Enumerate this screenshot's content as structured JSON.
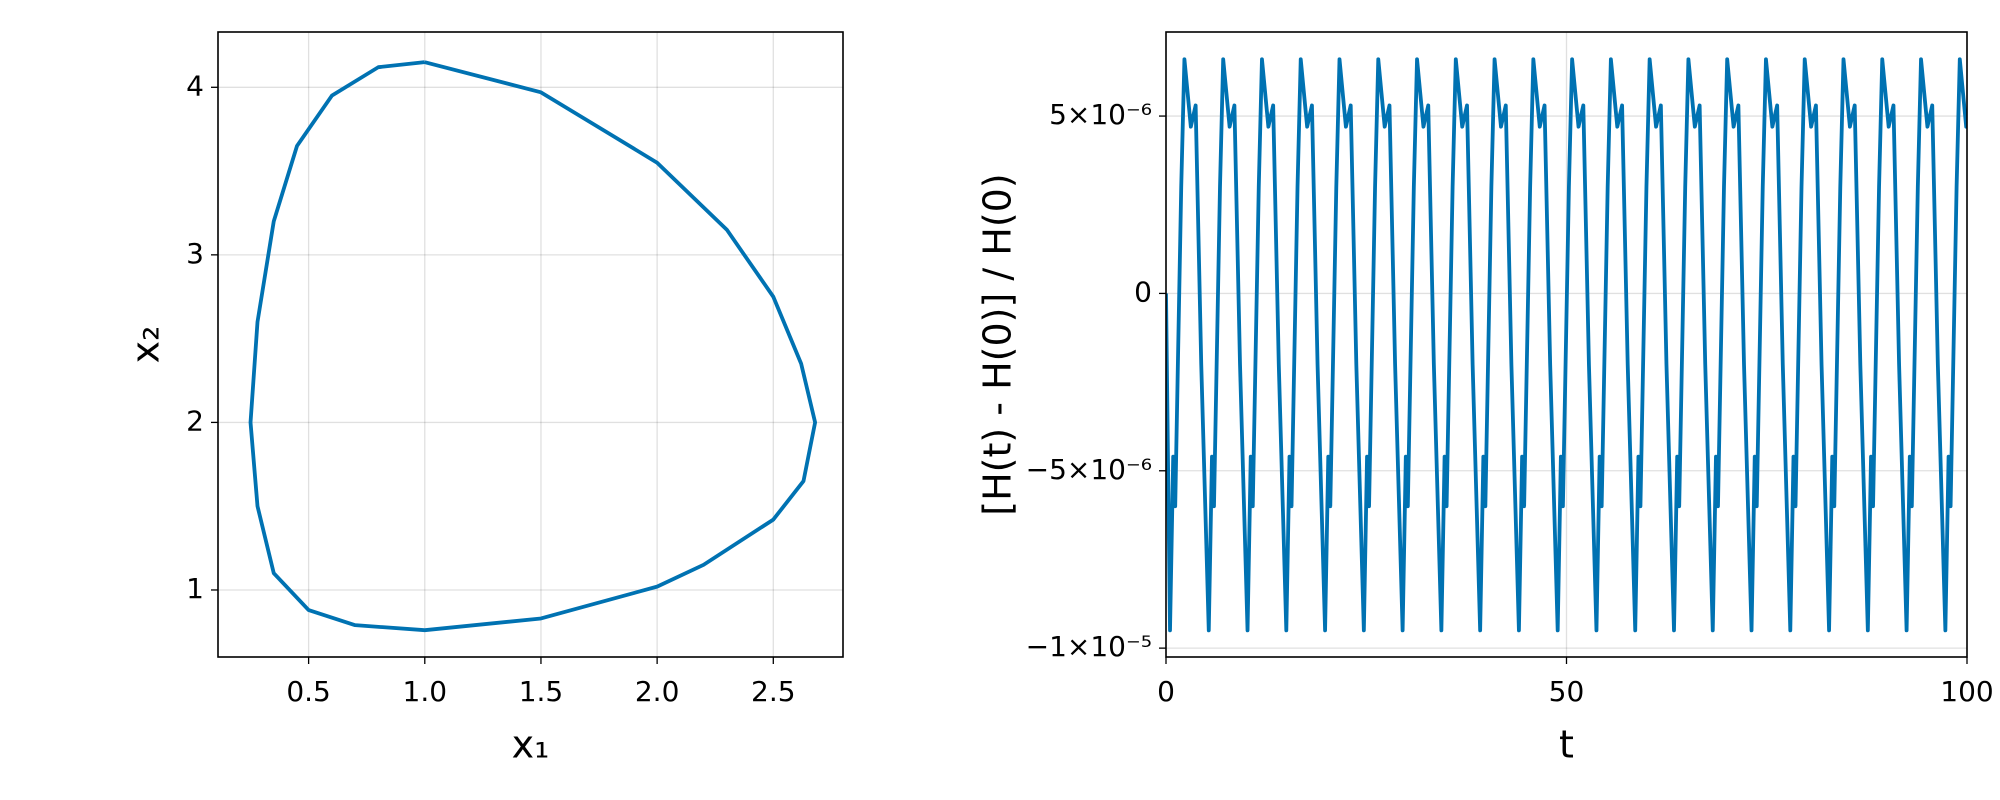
{
  "chart_data": [
    {
      "type": "line",
      "xlabel": "x₁",
      "ylabel": "x₂",
      "color": "#0072b2",
      "grid": true,
      "xlim": [
        0.11,
        2.8
      ],
      "ylim": [
        0.6,
        4.33
      ],
      "xticks": [
        0.5,
        {
          "value": 1.0,
          "label": "1.0"
        },
        1.5,
        {
          "value": 2.0,
          "label": "2.0"
        },
        2.5
      ],
      "yticks": [
        1,
        2,
        3,
        4
      ],
      "x": [
        1.0,
        1.5,
        2.0,
        2.3,
        2.5,
        2.62,
        2.68,
        2.63,
        2.5,
        2.2,
        2.0,
        1.5,
        1.0,
        0.7,
        0.5,
        0.35,
        0.28,
        0.25,
        0.28,
        0.35,
        0.45,
        0.6,
        0.8,
        1.0
      ],
      "values": [
        4.15,
        3.97,
        3.55,
        3.15,
        2.75,
        2.35,
        2.0,
        1.65,
        1.42,
        1.15,
        1.02,
        0.83,
        0.76,
        0.79,
        0.88,
        1.1,
        1.5,
        2.0,
        2.6,
        3.2,
        3.65,
        3.95,
        4.12,
        4.15
      ]
    },
    {
      "type": "line",
      "xlabel": "t",
      "ylabel": "[H(t) - H(0)] / H(0)",
      "color": "#0072b2",
      "grid": true,
      "xlim": [
        0,
        100
      ],
      "ylim": [
        -1.025e-05,
        7.37e-06
      ],
      "xticks": [
        0,
        50,
        100
      ],
      "yticks": [
        {
          "value": 5e-06,
          "label": "5×10⁻⁶"
        },
        0,
        {
          "value": -5e-06,
          "label": "−5×10⁻⁶"
        },
        {
          "value": -1e-05,
          "label": "−1×10⁻⁵"
        }
      ],
      "x": [
        0,
        0.5,
        0.9,
        1.15,
        1.9,
        2.3,
        3.1,
        3.7,
        4.4,
        5.34,
        5.74,
        5.99,
        6.74,
        7.14,
        7.94,
        8.54,
        9.24,
        10.18,
        10.58,
        10.83,
        11.58,
        11.98,
        12.78,
        13.38,
        14.08,
        15.02,
        15.42,
        15.67,
        16.42,
        16.82,
        17.62,
        18.22,
        18.92,
        19.86,
        20.26,
        20.51,
        21.26,
        21.66,
        22.46,
        23.06,
        23.76,
        24.7,
        25.1,
        25.35,
        26.1,
        26.5,
        27.3,
        27.9,
        28.6,
        29.54,
        29.94,
        30.19,
        30.94,
        31.34,
        32.14,
        32.74,
        33.44,
        34.38,
        34.78,
        35.03,
        35.78,
        36.18,
        36.98,
        37.58,
        38.28,
        39.22,
        39.62,
        39.87,
        40.62,
        41.02,
        41.82,
        42.42,
        43.12,
        44.06,
        44.46,
        44.71,
        45.46,
        45.86,
        46.66,
        47.26,
        47.96,
        48.9,
        49.3,
        49.55,
        50.3,
        50.7,
        51.5,
        52.1,
        52.8,
        53.74,
        54.14,
        54.39,
        55.14,
        55.54,
        56.34,
        56.94,
        57.64,
        58.58,
        58.98,
        59.23,
        59.98,
        60.38,
        61.18,
        61.78,
        62.48,
        63.42,
        63.82,
        64.07,
        64.82,
        65.22,
        66.02,
        66.62,
        67.32,
        68.26,
        68.66,
        68.91,
        69.66,
        70.06,
        70.86,
        71.46,
        72.16,
        73.1,
        73.5,
        73.75,
        74.5,
        74.9,
        75.7,
        76.3,
        77,
        77.94,
        78.34,
        78.59,
        79.34,
        79.74,
        80.54,
        81.14,
        81.84,
        82.78,
        83.18,
        83.43,
        84.18,
        84.58,
        85.38,
        85.98,
        86.68,
        87.62,
        88.02,
        88.27,
        89.02,
        89.42,
        90.22,
        90.82,
        91.52,
        92.46,
        92.86,
        93.11,
        93.86,
        94.26,
        95.06,
        95.66,
        96.36,
        97.3,
        97.7,
        97.95,
        98.7,
        99.1,
        99.9,
        100
      ],
      "values": [
        0,
        -9.5e-06,
        -4.6e-06,
        -6e-06,
        3e-06,
        6.6e-06,
        4.7e-06,
        5.3e-06,
        -2e-06,
        -9.5e-06,
        -4.6e-06,
        -6e-06,
        3e-06,
        6.6e-06,
        4.7e-06,
        5.3e-06,
        -2e-06,
        -9.5e-06,
        -4.6e-06,
        -6e-06,
        3e-06,
        6.6e-06,
        4.7e-06,
        5.3e-06,
        -2e-06,
        -9.5e-06,
        -4.6e-06,
        -6e-06,
        3e-06,
        6.6e-06,
        4.7e-06,
        5.3e-06,
        -2e-06,
        -9.5e-06,
        -4.6e-06,
        -6e-06,
        3e-06,
        6.6e-06,
        4.7e-06,
        5.3e-06,
        -2e-06,
        -9.5e-06,
        -4.6e-06,
        -6e-06,
        3e-06,
        6.6e-06,
        4.7e-06,
        5.3e-06,
        -2e-06,
        -9.5e-06,
        -4.6e-06,
        -6e-06,
        3e-06,
        6.6e-06,
        4.7e-06,
        5.3e-06,
        -2e-06,
        -9.5e-06,
        -4.6e-06,
        -6e-06,
        3e-06,
        6.6e-06,
        4.7e-06,
        5.3e-06,
        -2e-06,
        -9.5e-06,
        -4.6e-06,
        -6e-06,
        3e-06,
        6.6e-06,
        4.7e-06,
        5.3e-06,
        -2e-06,
        -9.5e-06,
        -4.6e-06,
        -6e-06,
        3e-06,
        6.6e-06,
        4.7e-06,
        5.3e-06,
        -2e-06,
        -9.5e-06,
        -4.6e-06,
        -6e-06,
        3e-06,
        6.6e-06,
        4.7e-06,
        5.3e-06,
        -2e-06,
        -9.5e-06,
        -4.6e-06,
        -6e-06,
        3e-06,
        6.6e-06,
        4.7e-06,
        5.3e-06,
        -2e-06,
        -9.5e-06,
        -4.6e-06,
        -6e-06,
        3e-06,
        6.6e-06,
        4.7e-06,
        5.3e-06,
        -2e-06,
        -9.5e-06,
        -4.6e-06,
        -6e-06,
        3e-06,
        6.6e-06,
        4.7e-06,
        5.3e-06,
        -2e-06,
        -9.5e-06,
        -4.6e-06,
        -6e-06,
        3e-06,
        6.6e-06,
        4.7e-06,
        5.3e-06,
        -2e-06,
        -9.5e-06,
        -4.6e-06,
        -6e-06,
        3e-06,
        6.6e-06,
        4.7e-06,
        5.3e-06,
        -2e-06,
        -9.5e-06,
        -4.6e-06,
        -6e-06,
        3e-06,
        6.6e-06,
        4.7e-06,
        5.3e-06,
        -2e-06,
        -9.5e-06,
        -4.6e-06,
        -6e-06,
        3e-06,
        6.6e-06,
        4.7e-06,
        5.3e-06,
        -2e-06,
        -9.5e-06,
        -4.6e-06,
        -6e-06,
        3e-06,
        6.6e-06,
        4.7e-06,
        5.3e-06,
        -2e-06,
        -9.5e-06,
        -4.6e-06,
        -6e-06,
        3e-06,
        6.6e-06,
        4.7e-06,
        5.3e-06,
        -2e-06,
        -9.5e-06,
        -4.6e-06,
        -6e-06,
        3e-06,
        6.6e-06,
        4.7e-06,
        5e-06
      ]
    }
  ]
}
